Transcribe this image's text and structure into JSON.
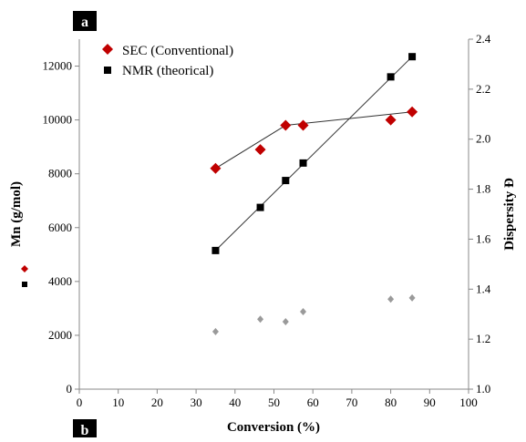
{
  "panel_labels": {
    "top": "a",
    "bottom": "b"
  },
  "chart_data": {
    "type": "scatter",
    "xlabel": "Conversion (%)",
    "ylabel_left": "Mn (g/mol)",
    "ylabel_right": "Dispersity Đ",
    "xlim": [
      0,
      100
    ],
    "x_ticks": [
      0,
      10,
      20,
      30,
      40,
      50,
      60,
      70,
      80,
      90,
      100
    ],
    "ylim_left": [
      0,
      13000
    ],
    "y_ticks_left": [
      0,
      2000,
      4000,
      6000,
      8000,
      10000,
      12000
    ],
    "ylim_right": [
      1.0,
      2.4
    ],
    "y_ticks_right": [
      "1.0",
      "1.2",
      "1.4",
      "1.6",
      "1.8",
      "2.0",
      "2.2",
      "2.4"
    ],
    "legend_position": "top-left",
    "series": [
      {
        "name": "SEC (Conventional)",
        "axis": "left",
        "marker": "diamond",
        "color": "#c00000",
        "x": [
          35,
          46.5,
          53,
          57.5,
          80,
          85.5
        ],
        "y": [
          8200,
          8900,
          9800,
          9800,
          10000,
          10300
        ],
        "trendline_segments": [
          [
            0,
            2
          ],
          [
            2,
            5
          ]
        ]
      },
      {
        "name": "NMR (theorical)",
        "axis": "left",
        "marker": "square",
        "color": "#000000",
        "x": [
          35,
          46.5,
          53,
          57.5,
          80,
          85.5
        ],
        "y": [
          5150,
          6750,
          7750,
          8400,
          11600,
          12350
        ],
        "trendline_segments": [
          [
            0,
            5
          ]
        ]
      },
      {
        "axis": "right",
        "marker": "small-diamond",
        "color": "#9a9a9a",
        "x": [
          35,
          46.5,
          53,
          57.5,
          80,
          85.5
        ],
        "y": [
          1.23,
          1.28,
          1.27,
          1.31,
          1.36,
          1.365
        ]
      }
    ],
    "left_axis_markers": [
      {
        "marker": "diamond",
        "color": "#c00000"
      },
      {
        "marker": "square",
        "color": "#000000"
      }
    ]
  }
}
